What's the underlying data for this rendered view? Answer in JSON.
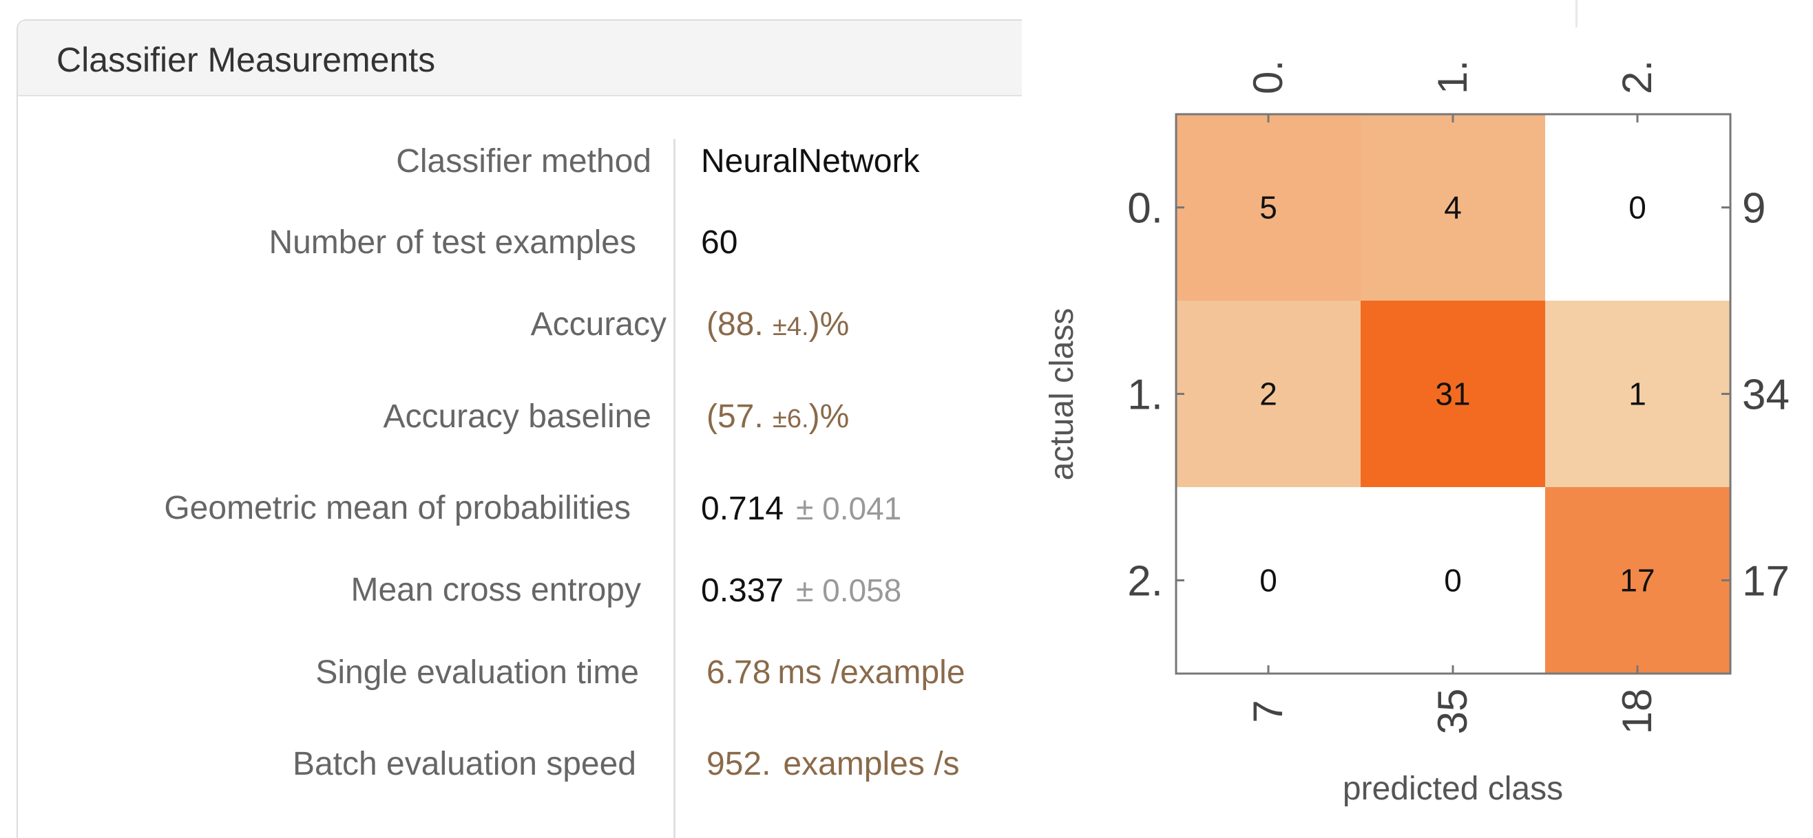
{
  "panel": {
    "title": "Classifier Measurements",
    "rows": [
      {
        "label": "Classifier method",
        "value": "NeuralNetwork"
      },
      {
        "label": "Number of test examples",
        "value": "60"
      },
      {
        "label": "Accuracy",
        "open": "(88. ",
        "pm": "±4.",
        "close": ")%"
      },
      {
        "label": "Accuracy baseline",
        "open": "(57. ",
        "pm": "±6.",
        "close": ")%"
      },
      {
        "label": "Geometric mean of probabilities",
        "value": "0.714",
        "uncertainty": "± 0.041"
      },
      {
        "label": "Mean cross entropy",
        "value": "0.337",
        "uncertainty": "± 0.058"
      },
      {
        "label": "Single evaluation time",
        "value": "6.78",
        "unit": "ms /example"
      },
      {
        "label": "Batch evaluation speed",
        "value": "952.",
        "unit": "examples /s"
      }
    ]
  },
  "colors": {
    "accent_value": "#8a6a4a",
    "label_gray": "#666666",
    "uncertainty_gray": "#999999"
  },
  "chart_data": {
    "type": "heatmap",
    "xlabel": "predicted class",
    "ylabel": "actual class",
    "classes": [
      "0.",
      "1.",
      "2."
    ],
    "matrix": [
      [
        5,
        4,
        0
      ],
      [
        2,
        31,
        1
      ],
      [
        0,
        0,
        17
      ]
    ],
    "row_totals": [
      "9",
      "34",
      "17"
    ],
    "column_totals": [
      "7",
      "35",
      "18"
    ],
    "colors": {
      "zero": "#ffffff",
      "low": "#f4e9c8",
      "high": "#f26b21"
    }
  }
}
